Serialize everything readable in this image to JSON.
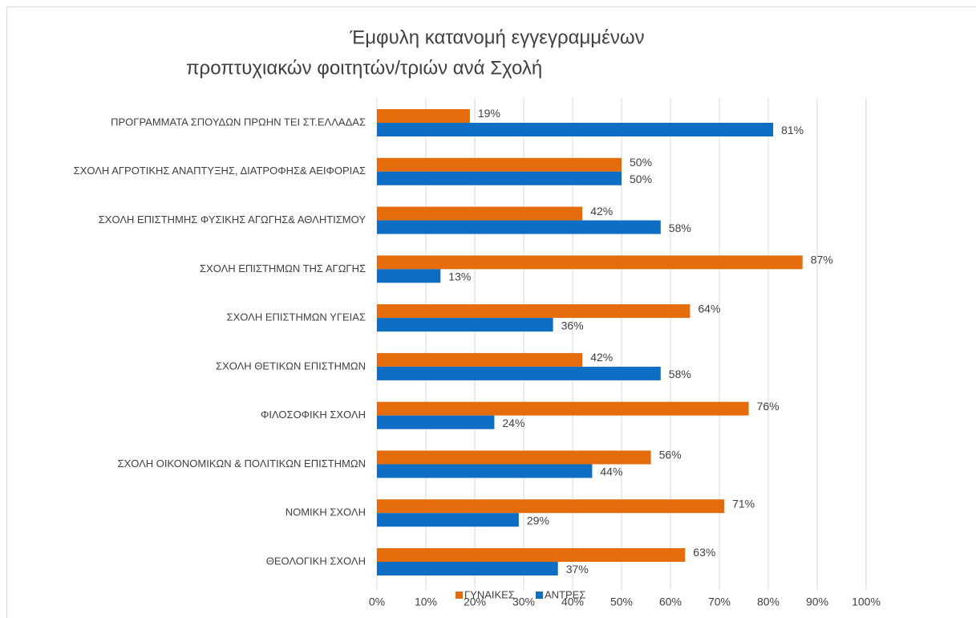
{
  "chart_data": {
    "type": "bar",
    "orientation": "horizontal",
    "title": [
      "Έμφυλη κατανομή εγγεγραμμένων",
      "προπτυχιακών φοιτητών/τριών ανά Σχολή"
    ],
    "categories": [
      "ΠΡΟΓΡΑΜΜΑΤΑ ΣΠΟΥΔΩΝ ΠΡΩΗΝ ΤΕΙ ΣΤ.ΕΛΛΑΔΑΣ",
      "ΣΧΟΛΗ ΑΓΡΟΤΙΚΗΣ ΑΝΑΠΤΥΞΗΣ, ΔΙΑΤΡΟΦΗΣ& ΑΕΙΦΟΡΙΑΣ",
      "ΣΧΟΛΗ ΕΠΙΣΤΗΜΗΣ ΦΥΣΙΚΗΣ ΑΓΩΓΗΣ& ΑΘΛΗΤΙΣΜΟΥ",
      "ΣΧΟΛΗ ΕΠΙΣΤΗΜΩΝ ΤΗΣ ΑΓΩΓΗΣ",
      "ΣΧΟΛΗ ΕΠΙΣΤΗΜΩΝ ΥΓΕΙΑΣ",
      "ΣΧΟΛΗ ΘΕΤΙΚΩΝ ΕΠΙΣΤΗΜΩΝ",
      "ΦΙΛΟΣΟΦΙΚΗ ΣΧΟΛΗ",
      "ΣΧΟΛΗ ΟΙΚΟΝΟΜΙΚΩΝ & ΠΟΛΙΤΙΚΩΝ ΕΠΙΣΤΗΜΩΝ",
      "ΝΟΜΙΚΗ ΣΧΟΛΗ",
      "ΘΕΟΛΟΓΙΚΗ ΣΧΟΛΗ"
    ],
    "series": [
      {
        "name": "ΓΥΝΑΙΚΕΣ",
        "color": "#e46c0a",
        "values": [
          19,
          50,
          42,
          87,
          64,
          42,
          76,
          56,
          71,
          63
        ],
        "value_labels": [
          "19%",
          "50%",
          "42%",
          "87%",
          "64%",
          "42%",
          "76%",
          "56%",
          "71%",
          "63%"
        ]
      },
      {
        "name": "ΑΝΤΡΕΣ",
        "color": "#0e6ec4",
        "values": [
          81,
          50,
          58,
          13,
          36,
          58,
          24,
          44,
          29,
          37
        ],
        "value_labels": [
          "81%",
          "50%",
          "58%",
          "13%",
          "36%",
          "58%",
          "24%",
          "44%",
          "29%",
          "37%"
        ]
      }
    ],
    "xlim": [
      0,
      100
    ],
    "xticks": [
      {
        "value": 0,
        "label": "0%"
      },
      {
        "value": 10,
        "label": "10%"
      },
      {
        "value": 20,
        "label": "20%"
      },
      {
        "value": 30,
        "label": "30%"
      },
      {
        "value": 40,
        "label": "40%"
      },
      {
        "value": 50,
        "label": "50%"
      },
      {
        "value": 60,
        "label": "60%"
      },
      {
        "value": 70,
        "label": "70%"
      },
      {
        "value": 80,
        "label": "80%"
      },
      {
        "value": 90,
        "label": "90%"
      },
      {
        "value": 100,
        "label": "100%"
      }
    ],
    "grid": true,
    "legend": "bottom"
  }
}
